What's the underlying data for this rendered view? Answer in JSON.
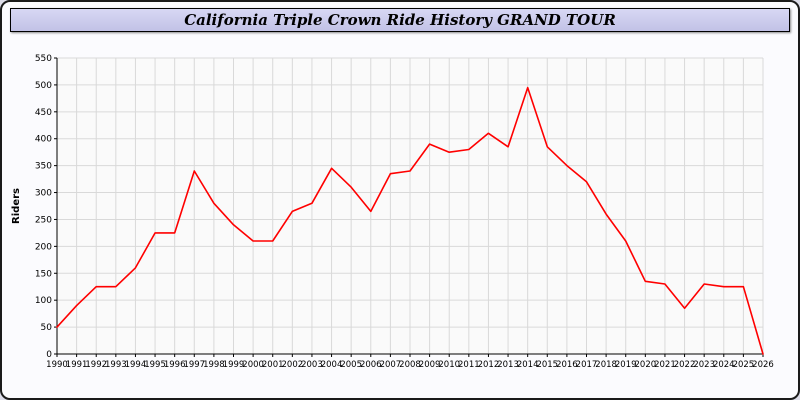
{
  "header": {
    "title": "California Triple Crown Ride History GRAND TOUR"
  },
  "colors": {
    "title_bar_bg": "#ccccee",
    "frame_border": "#1a1a1a",
    "plot_bg": "#fafafa",
    "grid_line": "#d9d9d9",
    "axis_line": "#000000",
    "series_line": "#ff0000"
  },
  "chart_data": {
    "type": "line",
    "title": "California Triple Crown Ride History GRAND TOUR",
    "xlabel": "",
    "ylabel": "Riders",
    "ylim": [
      0,
      550
    ],
    "ytick_step": 50,
    "grid": true,
    "legend": false,
    "x": [
      1990,
      1991,
      1992,
      1993,
      1994,
      1995,
      1996,
      1997,
      1998,
      1999,
      2000,
      2001,
      2002,
      2003,
      2004,
      2005,
      2006,
      2007,
      2008,
      2009,
      2010,
      2011,
      2012,
      2013,
      2014,
      2015,
      2016,
      2017,
      2018,
      2019,
      2020,
      2021,
      2022,
      2023,
      2024,
      2025,
      2026
    ],
    "series": [
      {
        "name": "Riders",
        "color": "#ff0000",
        "values": [
          50,
          90,
          125,
          125,
          160,
          225,
          225,
          340,
          280,
          240,
          210,
          210,
          265,
          280,
          345,
          310,
          265,
          335,
          340,
          390,
          375,
          380,
          410,
          385,
          495,
          385,
          350,
          320,
          260,
          210,
          135,
          130,
          85,
          130,
          125,
          125,
          0
        ]
      }
    ]
  }
}
